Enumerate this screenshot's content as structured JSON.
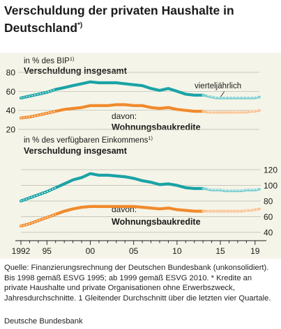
{
  "title": "Verschuldung der privaten Haushalte in Deutschland",
  "title_marker": "*)",
  "chart_data": [
    {
      "type": "line",
      "unit_label": "in % des BIP",
      "unit_marker": "1)",
      "axis_side": "left",
      "ylim": [
        20,
        80
      ],
      "yticks": [
        80,
        60,
        40,
        20
      ],
      "annotation_top": "vierteljährlich",
      "series": [
        {
          "name": "Verschuldung insgesamt",
          "color": "#1aa3a6",
          "x": [
            1992,
            1993,
            1994,
            1995,
            1996,
            1997,
            1998,
            1999,
            2000,
            2001,
            2002,
            2003,
            2004,
            2005,
            2006,
            2007,
            2008,
            2009,
            2010,
            2011,
            2012,
            2013
          ],
          "values": [
            53,
            55,
            57,
            59,
            62,
            64,
            66,
            68,
            70,
            69,
            69,
            69,
            68,
            67,
            66,
            63,
            61,
            63,
            60,
            57,
            56,
            56
          ]
        },
        {
          "name": "davon: Wohnungsbaukredite",
          "color": "#f08a2c",
          "x": [
            1992,
            1993,
            1994,
            1995,
            1996,
            1997,
            1998,
            1999,
            2000,
            2001,
            2002,
            2003,
            2004,
            2005,
            2006,
            2007,
            2008,
            2009,
            2010,
            2011,
            2012,
            2013
          ],
          "values": [
            32,
            33,
            35,
            37,
            39,
            41,
            42,
            43,
            45,
            45,
            45,
            46,
            46,
            45,
            45,
            43,
            42,
            43,
            41,
            40,
            39,
            39
          ]
        }
      ],
      "quarterly": [
        {
          "color": "#7fd0d2",
          "x": [
            2013.5,
            2014,
            2014.5,
            2015,
            2015.5,
            2016,
            2016.5,
            2017,
            2017.5,
            2018,
            2018.5,
            2019,
            2019.5
          ],
          "values": [
            55,
            54,
            53,
            53,
            53,
            53,
            53,
            53,
            53,
            53,
            53,
            53,
            54
          ]
        },
        {
          "color": "#f9c190",
          "x": [
            2013.5,
            2014,
            2014.5,
            2015,
            2015.5,
            2016,
            2016.5,
            2017,
            2017.5,
            2018,
            2018.5,
            2019,
            2019.5
          ],
          "values": [
            38,
            38,
            38,
            38,
            38,
            38,
            38,
            38,
            38,
            38,
            39,
            39,
            40
          ]
        }
      ]
    },
    {
      "type": "line",
      "unit_label": "in % des verfügbaren Einkommens",
      "unit_marker": "1)",
      "axis_side": "right",
      "ylim": [
        40,
        120
      ],
      "yticks": [
        120,
        100,
        80,
        60,
        40
      ],
      "series": [
        {
          "name": "Verschuldung insgesamt",
          "color": "#1aa3a6",
          "x": [
            1992,
            1993,
            1994,
            1995,
            1996,
            1997,
            1998,
            1999,
            2000,
            2001,
            2002,
            2003,
            2004,
            2005,
            2006,
            2007,
            2008,
            2009,
            2010,
            2011,
            2012,
            2013
          ],
          "values": [
            80,
            84,
            88,
            92,
            97,
            102,
            107,
            110,
            115,
            113,
            113,
            112,
            111,
            109,
            106,
            104,
            101,
            102,
            100,
            97,
            96,
            96
          ]
        },
        {
          "name": "davon: Wohnungsbaukredite",
          "color": "#f08a2c",
          "x": [
            1992,
            1993,
            1994,
            1995,
            1996,
            1997,
            1998,
            1999,
            2000,
            2001,
            2002,
            2003,
            2004,
            2005,
            2006,
            2007,
            2008,
            2009,
            2010,
            2011,
            2012,
            2013
          ],
          "values": [
            48,
            51,
            55,
            59,
            63,
            67,
            70,
            72,
            73,
            73,
            73,
            73,
            73,
            73,
            72,
            71,
            70,
            71,
            69,
            68,
            67,
            67
          ]
        }
      ],
      "quarterly": [
        {
          "color": "#7fd0d2",
          "x": [
            2013.5,
            2014,
            2014.5,
            2015,
            2015.5,
            2016,
            2016.5,
            2017,
            2017.5,
            2018,
            2018.5,
            2019,
            2019.5
          ],
          "values": [
            95,
            94,
            94,
            94,
            93,
            93,
            93,
            93,
            93,
            94,
            94,
            94,
            95
          ]
        },
        {
          "color": "#f9c190",
          "x": [
            2013.5,
            2014,
            2014.5,
            2015,
            2015.5,
            2016,
            2016.5,
            2017,
            2017.5,
            2018,
            2018.5,
            2019,
            2019.5
          ],
          "values": [
            67,
            67,
            67,
            67,
            67,
            67,
            67,
            67,
            67,
            68,
            68,
            69,
            70
          ]
        }
      ]
    }
  ],
  "x_axis": {
    "range": [
      1992,
      2019.5
    ],
    "ticks": [
      {
        "year": 1992,
        "label": "1992"
      },
      {
        "year": 1995,
        "label": "95"
      },
      {
        "year": 2000,
        "label": "00"
      },
      {
        "year": 2005,
        "label": "05"
      },
      {
        "year": 2010,
        "label": "10"
      },
      {
        "year": 2015,
        "label": "15"
      },
      {
        "year": 2019,
        "label": "19"
      }
    ]
  },
  "labels": {
    "total_label": "Verschuldung insgesamt",
    "housing_prefix": "davon:",
    "housing_label": "Wohnungsbaukredite"
  },
  "source": "Quelle: Finanzierungsrechnung der Deutschen Bundesbank (unkonsolidiert). Bis 1998 gemäß ESVG 1995; ab 1999 gemäß ESVG 2010. * Kredite an private Haushalte und private Organisationen ohne Erwerbszweck, Jahresdurchschnitte. 1 Gleitender Durchschnitt über die letzten vier Quartale.",
  "publisher": "Deutsche Bundesbank"
}
